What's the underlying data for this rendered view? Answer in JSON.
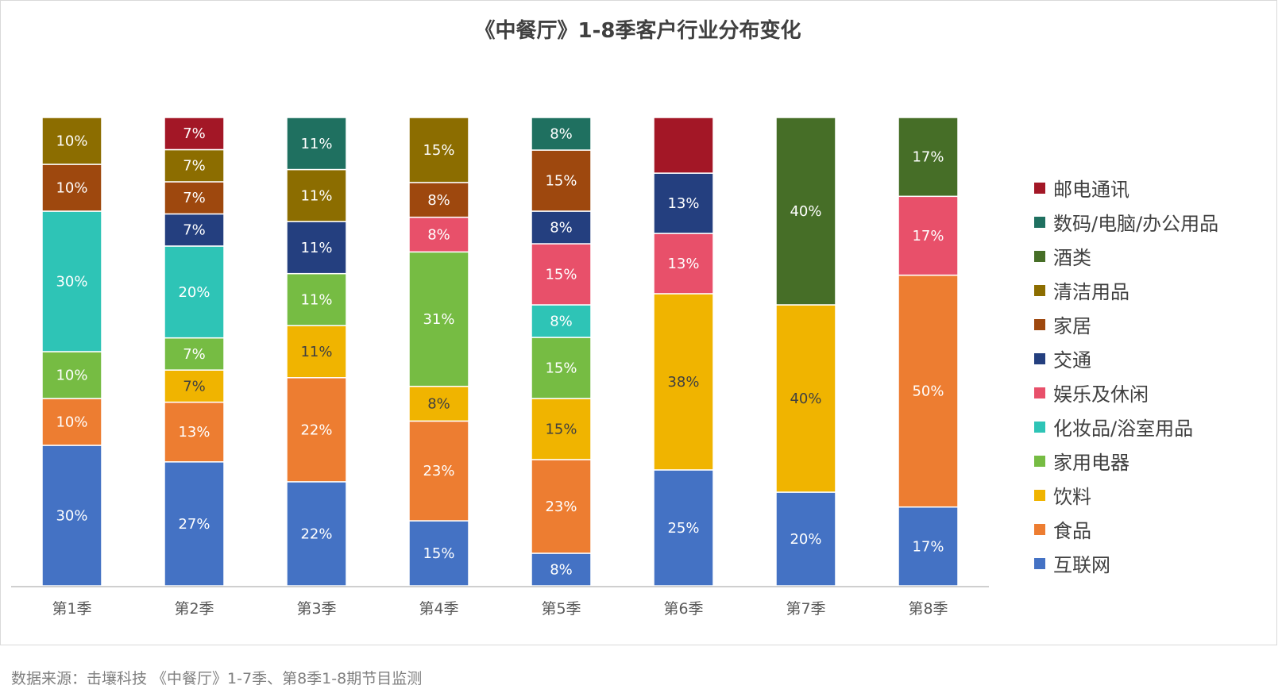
{
  "title": "《中餐厅》1-8季客户行业分布变化",
  "source": "数据来源：击壤科技 《中餐厅》1-7季、第8季1-8期节目监测",
  "legend_order": [
    "邮电通讯",
    "数码/电脑/办公用品",
    "酒类",
    "清洁用品",
    "家居",
    "交通",
    "娱乐及休闲",
    "化妆品/浴室用品",
    "家用电器",
    "饮料",
    "食品",
    "互联网"
  ],
  "chart_data": {
    "type": "bar",
    "stacked": "100%",
    "title": "《中餐厅》1-8季客户行业分布变化",
    "categories": [
      "第1季",
      "第2季",
      "第3季",
      "第4季",
      "第5季",
      "第6季",
      "第7季",
      "第8季"
    ],
    "ylim": [
      0,
      100
    ],
    "grid": false,
    "legend_position": "right",
    "series": [
      {
        "name": "互联网",
        "color": "#4472C4",
        "values": [
          30,
          27,
          22,
          15,
          8,
          25,
          20,
          17
        ],
        "labels": [
          "30%",
          "27%",
          "22%",
          "15%",
          "8%",
          "25%",
          "20%",
          "17%"
        ]
      },
      {
        "name": "食品",
        "color": "#ED7D31",
        "values": [
          10,
          13,
          22,
          23,
          23,
          0,
          0,
          50
        ],
        "labels": [
          "10%",
          "13%",
          "22%",
          "23%",
          "23%",
          "",
          "",
          "50%"
        ]
      },
      {
        "name": "饮料",
        "color": "#F0B400",
        "values": [
          0,
          7,
          11,
          8,
          15,
          38,
          40,
          0
        ],
        "labels": [
          "",
          "7%",
          "11%",
          "8%",
          "15%",
          "38%",
          "40%",
          ""
        ]
      },
      {
        "name": "家用电器",
        "color": "#76BC43",
        "values": [
          10,
          7,
          11,
          31,
          15,
          0,
          0,
          0
        ],
        "labels": [
          "10%",
          "7%",
          "11%",
          "31%",
          "15%",
          "",
          "",
          ""
        ]
      },
      {
        "name": "化妆品/浴室用品",
        "color": "#2EC4B6",
        "values": [
          30,
          20,
          0,
          0,
          8,
          0,
          0,
          0
        ],
        "labels": [
          "30%",
          "20%",
          "",
          "",
          "8%",
          "",
          "",
          ""
        ]
      },
      {
        "name": "娱乐及休闲",
        "color": "#E8506A",
        "values": [
          0,
          0,
          0,
          8,
          15,
          13,
          0,
          17
        ],
        "labels": [
          "",
          "",
          "",
          "8%",
          "15%",
          "13%",
          "",
          "17%"
        ]
      },
      {
        "name": "交通",
        "color": "#243F7F",
        "values": [
          0,
          7,
          11,
          0,
          8,
          13,
          0,
          0
        ],
        "labels": [
          "",
          "7%",
          "11%",
          "",
          "8%",
          "13%",
          "",
          ""
        ]
      },
      {
        "name": "家居",
        "color": "#9E480E",
        "values": [
          10,
          7,
          0,
          8,
          15,
          0,
          0,
          0
        ],
        "labels": [
          "10%",
          "7%",
          "",
          "8%",
          "15%",
          "",
          "",
          ""
        ]
      },
      {
        "name": "清洁用品",
        "color": "#8C6D00",
        "values": [
          10,
          7,
          11,
          15,
          0,
          0,
          0,
          0
        ],
        "labels": [
          "10%",
          "7%",
          "11%",
          "15%",
          "",
          "",
          "",
          ""
        ]
      },
      {
        "name": "酒类",
        "color": "#466E27",
        "values": [
          0,
          0,
          0,
          0,
          0,
          0,
          40,
          17
        ],
        "labels": [
          "",
          "",
          "",
          "",
          "",
          "",
          "40%",
          "17%"
        ]
      },
      {
        "name": "数码/电脑/办公用品",
        "color": "#1F7060",
        "values": [
          0,
          0,
          11,
          0,
          8,
          0,
          0,
          0
        ],
        "labels": [
          "",
          "",
          "11%",
          "",
          "8%",
          "",
          "",
          ""
        ]
      },
      {
        "name": "邮电通讯",
        "color": "#A31726",
        "values": [
          0,
          7,
          0,
          0,
          0,
          12,
          0,
          0
        ],
        "labels": [
          "",
          "7%",
          "",
          "",
          "",
          "",
          "",
          ""
        ]
      }
    ]
  }
}
